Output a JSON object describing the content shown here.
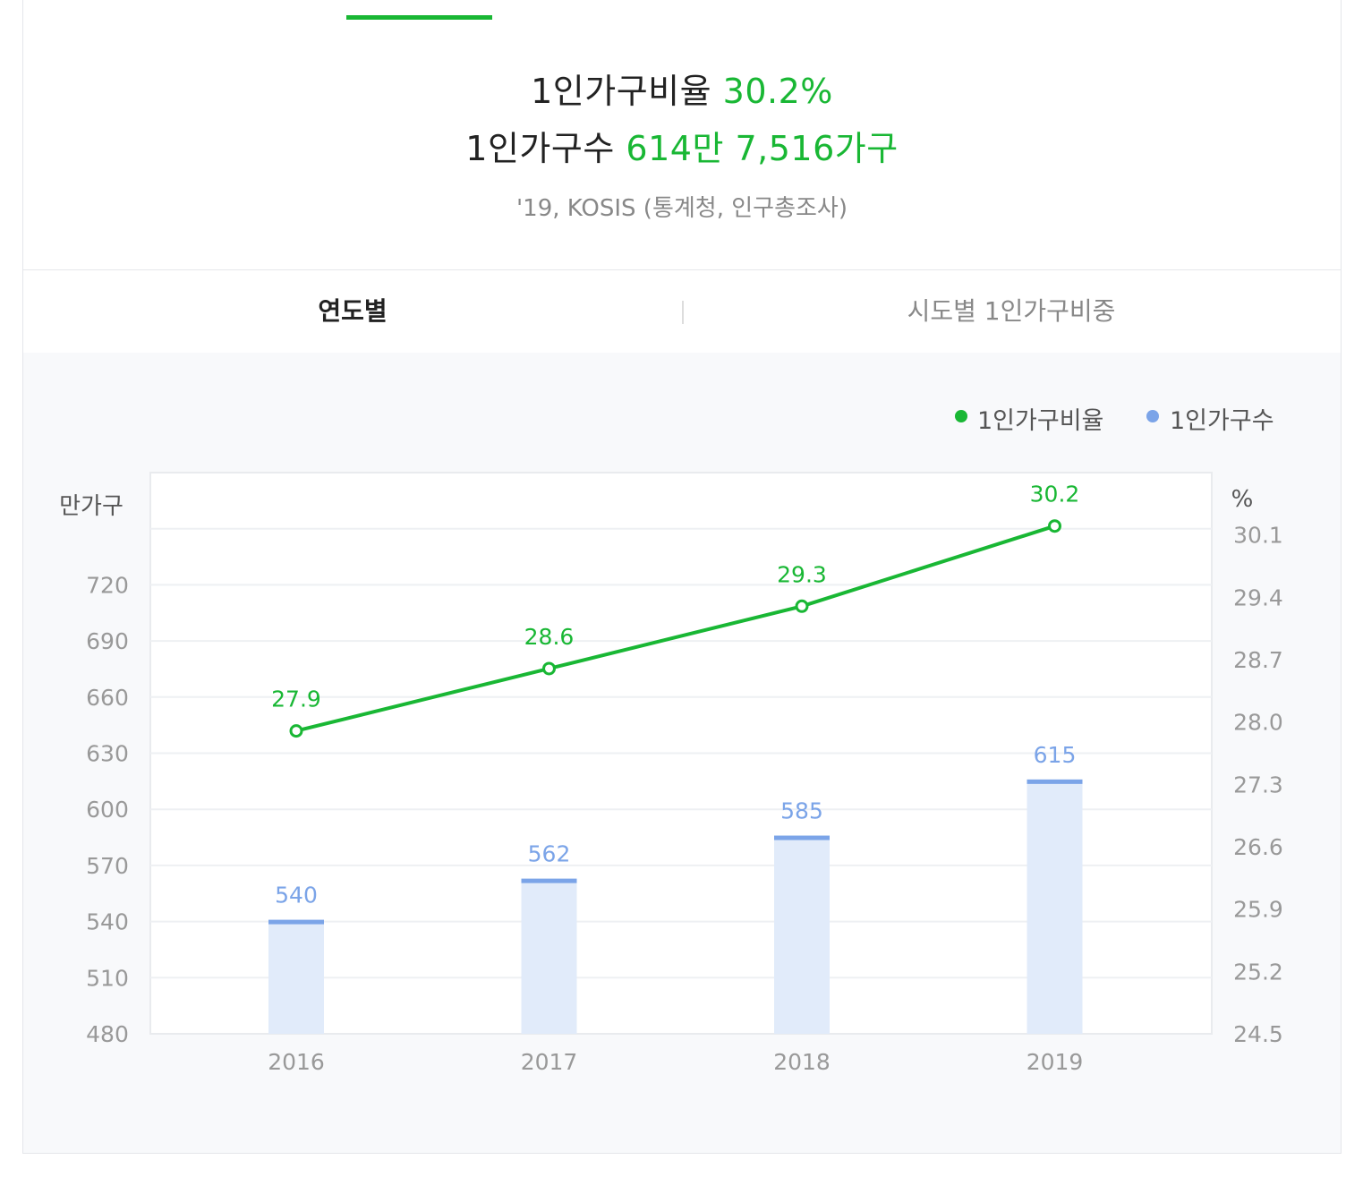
{
  "summary": {
    "ratio_label": "1인가구비율",
    "ratio_value": "30.2%",
    "count_label": "1인가구수",
    "count_value": "614만 7,516가구",
    "source": "'19, KOSIS (통계청, 인구총조사)"
  },
  "tabs": [
    {
      "label": "연도별",
      "active": true
    },
    {
      "label": "시도별 1인가구비중",
      "active": false
    }
  ],
  "colors": {
    "green": "#19b734",
    "blue": "#7ba4e8",
    "bar_fill": "#e1ebfa"
  },
  "chart_data": {
    "type": "bar+line",
    "categories": [
      "2016",
      "2017",
      "2018",
      "2019"
    ],
    "legend": [
      "1인가구비율",
      "1인가구수"
    ],
    "legend_position": "top-right",
    "left_axis": {
      "unit": "만가구",
      "range": [
        480,
        780
      ],
      "ticks": [
        "720",
        "690",
        "660",
        "630",
        "600",
        "570",
        "540",
        "510",
        "480"
      ]
    },
    "right_axis": {
      "unit": "%",
      "range": [
        24.5,
        30.8
      ],
      "ticks": [
        "30.1",
        "29.4",
        "28.7",
        "28.0",
        "27.3",
        "26.6",
        "25.9",
        "25.2",
        "24.5"
      ]
    },
    "series": [
      {
        "name": "1인가구수",
        "type": "bar",
        "axis": "left",
        "values": [
          540,
          562,
          585,
          615
        ],
        "labels": [
          "540",
          "562",
          "585",
          "615"
        ]
      },
      {
        "name": "1인가구비율",
        "type": "line",
        "axis": "right",
        "values": [
          27.9,
          28.6,
          29.3,
          30.2
        ],
        "labels": [
          "27.9",
          "28.6",
          "29.3",
          "30.2"
        ]
      }
    ],
    "grid": true
  }
}
